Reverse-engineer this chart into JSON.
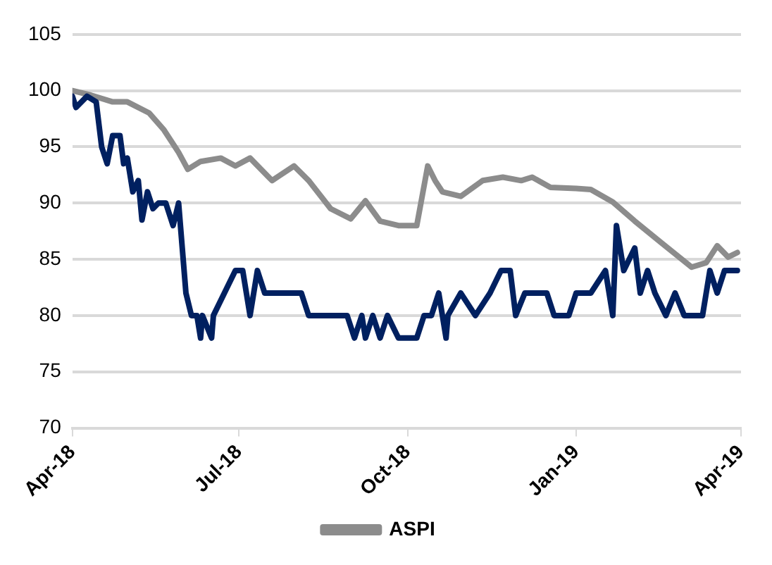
{
  "chart_data": {
    "type": "line",
    "xlim": [
      "2018-04-01",
      "2019-04-01"
    ],
    "xticks": [
      {
        "value": "2018-04-01",
        "label": "Apr-18"
      },
      {
        "value": "2018-07-01",
        "label": "Jul-18"
      },
      {
        "value": "2018-10-01",
        "label": "Oct-18"
      },
      {
        "value": "2019-01-01",
        "label": "Jan-19"
      },
      {
        "value": "2019-04-01",
        "label": "Apr-19"
      }
    ],
    "ylim": [
      70,
      105
    ],
    "yticks": [
      70,
      75,
      80,
      85,
      90,
      95,
      100,
      105
    ],
    "grid": "y",
    "legend": "bottom",
    "marker": "none",
    "line_style": "solid",
    "series": [
      {
        "color": "#002060",
        "x": [
          "2018-04-01",
          "2018-04-03",
          "2018-04-09",
          "2018-04-14",
          "2018-04-17",
          "2018-04-20",
          "2018-04-23",
          "2018-04-27",
          "2018-04-29",
          "2018-05-01",
          "2018-05-04",
          "2018-05-07",
          "2018-05-09",
          "2018-05-12",
          "2018-05-15",
          "2018-05-18",
          "2018-05-22",
          "2018-05-26",
          "2018-05-29",
          "2018-05-31",
          "2018-06-02",
          "2018-06-05",
          "2018-06-08",
          "2018-06-10",
          "2018-06-11",
          "2018-06-16",
          "2018-06-17",
          "2018-06-29",
          "2018-07-03",
          "2018-07-07",
          "2018-07-11",
          "2018-07-15",
          "2018-08-04",
          "2018-08-08",
          "2018-08-29",
          "2018-09-02",
          "2018-09-06",
          "2018-09-08",
          "2018-09-12",
          "2018-09-16",
          "2018-09-20",
          "2018-09-26",
          "2018-10-02",
          "2018-10-06",
          "2018-10-10",
          "2018-10-14",
          "2018-10-18",
          "2018-10-22",
          "2018-10-23",
          "2018-10-30",
          "2018-11-07",
          "2018-11-15",
          "2018-11-21",
          "2018-11-26",
          "2018-11-29",
          "2018-12-04",
          "2018-12-16",
          "2018-12-20",
          "2018-12-28",
          "2019-01-01",
          "2019-01-09",
          "2019-01-17",
          "2019-01-21",
          "2019-01-23",
          "2019-01-27",
          "2019-02-02",
          "2019-02-05",
          "2019-02-09",
          "2019-02-13",
          "2019-02-19",
          "2019-02-24",
          "2019-03-01",
          "2019-03-07",
          "2019-03-11",
          "2019-03-15",
          "2019-03-19",
          "2019-03-23",
          "2019-03-30"
        ],
        "values": [
          99.5,
          98.5,
          99.5,
          99,
          95,
          93.5,
          96,
          96,
          93.5,
          94,
          91,
          92,
          88.5,
          91,
          89.5,
          90,
          90,
          88,
          90,
          86,
          82,
          80,
          80,
          78,
          80,
          78,
          80,
          84,
          84,
          80,
          84,
          82,
          82,
          80,
          80,
          78,
          80,
          78,
          80,
          78,
          80,
          78,
          78,
          78,
          80,
          80,
          82,
          78,
          80,
          82,
          80,
          82,
          84,
          84,
          80,
          82,
          82,
          80,
          80,
          82,
          82,
          84,
          80,
          88,
          84,
          86,
          82,
          84,
          82,
          80,
          82,
          80,
          80,
          80,
          84,
          82,
          84,
          84
        ]
      },
      {
        "name": "ASPI",
        "color": "#8c8c8c",
        "x": [
          "2018-04-01",
          "2018-04-11",
          "2018-04-23",
          "2018-05-01",
          "2018-05-13",
          "2018-05-21",
          "2018-05-29",
          "2018-06-03",
          "2018-06-10",
          "2018-06-21",
          "2018-06-29",
          "2018-07-07",
          "2018-07-19",
          "2018-07-31",
          "2018-08-08",
          "2018-08-20",
          "2018-08-31",
          "2018-09-08",
          "2018-09-16",
          "2018-09-26",
          "2018-10-06",
          "2018-10-12",
          "2018-10-16",
          "2018-10-20",
          "2018-10-30",
          "2018-11-11",
          "2018-11-22",
          "2018-12-02",
          "2018-12-08",
          "2018-12-18",
          "2019-01-01",
          "2019-01-09",
          "2019-01-21",
          "2019-02-02",
          "2019-02-17",
          "2019-03-05",
          "2019-03-13",
          "2019-03-19",
          "2019-03-25",
          "2019-03-30"
        ],
        "values": [
          100,
          99.6,
          99,
          99,
          98,
          96.5,
          94.5,
          93,
          93.7,
          94,
          93.3,
          94,
          92,
          93.3,
          92,
          89.5,
          88.6,
          90.2,
          88.4,
          88,
          88,
          93.3,
          92,
          91,
          90.6,
          92,
          92.3,
          92,
          92.3,
          91.4,
          91.3,
          91.2,
          90.1,
          88.4,
          86.4,
          84.3,
          84.7,
          86.2,
          85.2,
          85.6
        ]
      }
    ]
  }
}
